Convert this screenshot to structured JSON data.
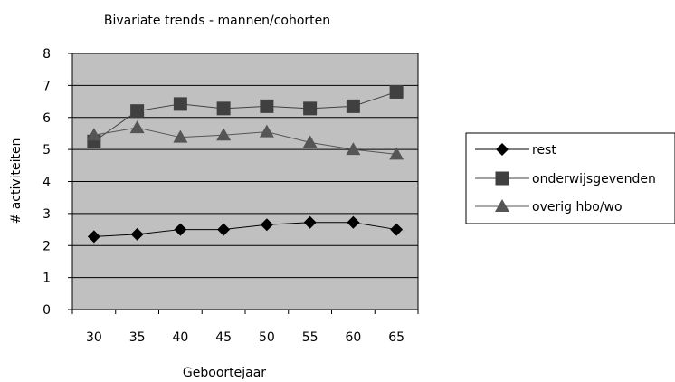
{
  "chart_data": {
    "type": "line",
    "title": "Bivariate trends - mannen/cohorten",
    "xlabel": "Geboortejaar",
    "ylabel": "# activiteiten",
    "categories": [
      "30",
      "35",
      "40",
      "45",
      "50",
      "55",
      "60",
      "65"
    ],
    "ylim": [
      0,
      8
    ],
    "yticks": [
      "0",
      "1",
      "2",
      "3",
      "4",
      "5",
      "6",
      "7",
      "8"
    ],
    "grid": true,
    "legend_position": "right",
    "plot_background": "#c0c0c0",
    "series": [
      {
        "name": "rest",
        "marker": "diamond",
        "color": "#000000",
        "values": [
          2.28,
          2.35,
          2.5,
          2.5,
          2.65,
          2.72,
          2.72,
          2.5
        ]
      },
      {
        "name": "onderwijsgevenden",
        "marker": "square",
        "color": "#404040",
        "values": [
          5.25,
          6.2,
          6.42,
          6.28,
          6.35,
          6.28,
          6.35,
          6.8
        ]
      },
      {
        "name": "overig hbo/wo",
        "marker": "triangle",
        "color": "#555555",
        "values": [
          5.45,
          5.68,
          5.38,
          5.45,
          5.55,
          5.22,
          5.0,
          4.85
        ]
      }
    ]
  }
}
